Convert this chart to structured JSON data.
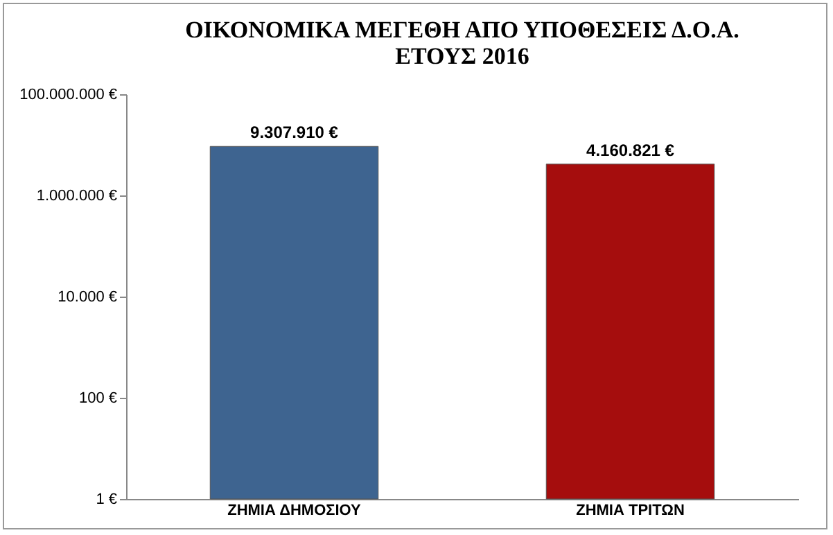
{
  "chart_data": {
    "type": "bar",
    "title": "ΟΙΚΟΝΟΜΙΚΑ ΜΕΓΕΘΗ ΑΠΟ ΥΠΟΘΕΣΕΙΣ Δ.Ο.Α.\nΕΤΟΥΣ 2016",
    "categories": [
      "ΖΗΜΙΑ ΔΗΜΟΣΙΟΥ",
      "ΖΗΜΙΑ ΤΡΙΤΩΝ"
    ],
    "values": [
      9307910,
      4160821
    ],
    "value_labels": [
      "9.307.910 €",
      "4.160.821 €"
    ],
    "colors": [
      "#3e6490",
      "#a50d0d"
    ],
    "log": "y",
    "ylim": [
      1,
      100000000
    ],
    "yticks": [
      {
        "value": 1,
        "label": "1 €"
      },
      {
        "value": 100,
        "label": "100 €"
      },
      {
        "value": 10000,
        "label": "10.000 €"
      },
      {
        "value": 1000000,
        "label": "1.000.000 €"
      },
      {
        "value": 100000000,
        "label": "100.000.000 €"
      }
    ],
    "grid": false
  }
}
